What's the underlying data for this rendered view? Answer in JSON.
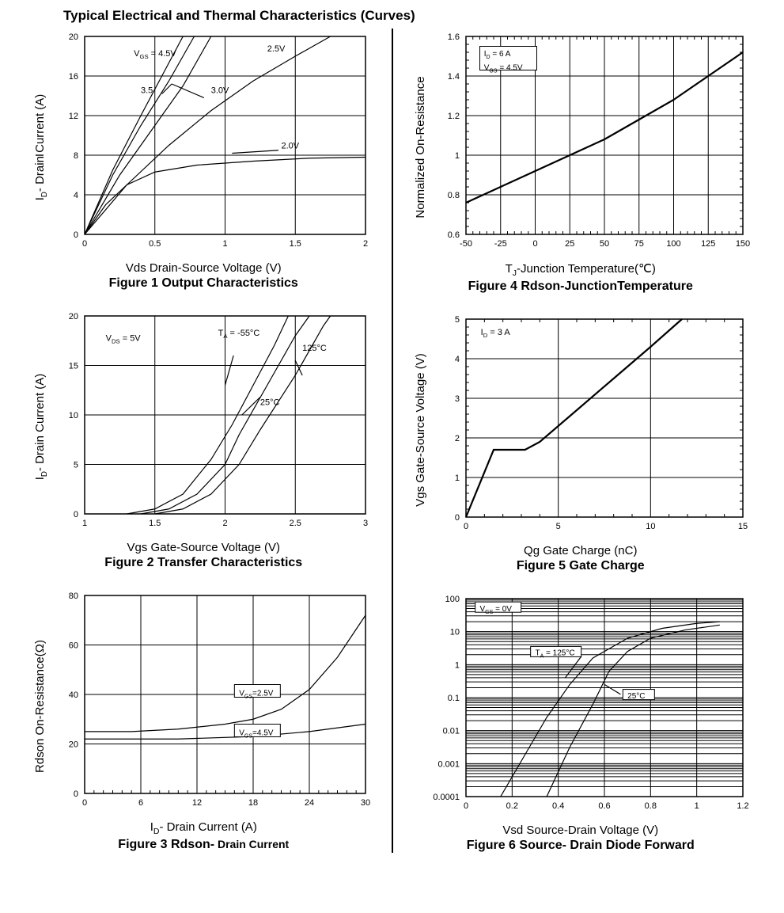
{
  "page_title": "Typical Electrical and Thermal Characteristics (Curves)",
  "background_color": "#ffffff",
  "line_color": "#000000",
  "grid_color": "#000000",
  "fig1": {
    "type": "line",
    "ylabel_html": "I<sub>D</sub>- Drain Current (A)",
    "xlabel": "Vds Drain-Source Voltage (V)",
    "title": "Figure 1 Output Characteristics",
    "xlim": [
      0,
      2
    ],
    "ylim": [
      0,
      20
    ],
    "xticks": [
      0,
      0.5,
      1,
      1.5,
      2
    ],
    "yticks": [
      0,
      4,
      8,
      12,
      16,
      20
    ],
    "annotation_vgs": "V",
    "annotation_vgs2": " = 4.5V",
    "labels": {
      "c45": "",
      "c35": "3.5",
      "c30": "3.0V",
      "c25": "2.5V",
      "c20": "2.0V"
    },
    "series": {
      "4.5V": [
        [
          0,
          0
        ],
        [
          0.2,
          6.5
        ],
        [
          0.4,
          12
        ],
        [
          0.55,
          16
        ],
        [
          0.7,
          20
        ]
      ],
      "3.5": [
        [
          0,
          0
        ],
        [
          0.2,
          6
        ],
        [
          0.4,
          11
        ],
        [
          0.6,
          15.5
        ],
        [
          0.78,
          20
        ]
      ],
      "3.0V": [
        [
          0,
          0
        ],
        [
          0.25,
          6
        ],
        [
          0.5,
          11
        ],
        [
          0.7,
          15
        ],
        [
          0.9,
          20
        ]
      ],
      "2.5V": [
        [
          0,
          0
        ],
        [
          0.3,
          5
        ],
        [
          0.6,
          9
        ],
        [
          0.9,
          12.5
        ],
        [
          1.2,
          15.5
        ],
        [
          1.5,
          18
        ],
        [
          1.75,
          20
        ]
      ],
      "2.0V": [
        [
          0,
          0
        ],
        [
          0.15,
          3
        ],
        [
          0.3,
          5
        ],
        [
          0.5,
          6.3
        ],
        [
          0.8,
          7
        ],
        [
          1.2,
          7.4
        ],
        [
          1.6,
          7.7
        ],
        [
          2.0,
          7.8
        ]
      ]
    }
  },
  "fig2": {
    "type": "line",
    "ylabel_html": "I<sub>D</sub>- Drain Current (A)",
    "xlabel": "Vgs Gate-Source Voltage (V)",
    "title": "Figure 2 Transfer Characteristics",
    "xlim": [
      1,
      3
    ],
    "ylim": [
      0,
      20
    ],
    "xticks": [
      1,
      1.5,
      2,
      2.5,
      3
    ],
    "yticks": [
      0,
      5,
      10,
      15,
      20
    ],
    "annotation_vds": "V",
    "annotation_vds2": " = 5V",
    "labels": {
      "m55": "T",
      "m55b": " = -55°C",
      "p125": "125°C",
      "p25": "25°C"
    },
    "series": {
      "-55": [
        [
          1.3,
          0
        ],
        [
          1.5,
          0.5
        ],
        [
          1.7,
          2
        ],
        [
          1.9,
          5.5
        ],
        [
          2.05,
          9
        ],
        [
          2.2,
          13
        ],
        [
          2.35,
          17
        ],
        [
          2.45,
          20
        ]
      ],
      "25": [
        [
          1.4,
          0
        ],
        [
          1.6,
          0.5
        ],
        [
          1.8,
          2
        ],
        [
          2.0,
          5
        ],
        [
          2.1,
          8
        ],
        [
          2.3,
          13
        ],
        [
          2.5,
          18
        ],
        [
          2.6,
          20
        ]
      ],
      "125": [
        [
          1.5,
          0
        ],
        [
          1.7,
          0.5
        ],
        [
          1.9,
          2
        ],
        [
          2.1,
          5
        ],
        [
          2.25,
          8.5
        ],
        [
          2.5,
          14
        ],
        [
          2.7,
          19
        ],
        [
          2.75,
          20
        ]
      ]
    }
  },
  "fig3": {
    "type": "line",
    "ylabel": "Rdson On-Resistance(Ω)",
    "xlabel_html": "I<sub>D</sub>- Drain Current (A)",
    "title": "Figure 3 Rdson-",
    "title_sub": " Drain Current",
    "xlim": [
      0,
      30
    ],
    "ylim": [
      0,
      80
    ],
    "xticks": [
      0,
      6,
      12,
      18,
      24,
      30
    ],
    "yticks": [
      0,
      20,
      40,
      60,
      80
    ],
    "minor_x": true,
    "labels": {
      "v25": "V",
      "v25b": "=2.5V",
      "v45": "V",
      "v45b": "=4.5V"
    },
    "series": {
      "2.5V": [
        [
          0,
          25
        ],
        [
          5,
          25
        ],
        [
          10,
          26
        ],
        [
          15,
          28
        ],
        [
          18,
          30
        ],
        [
          21,
          34
        ],
        [
          24,
          42
        ],
        [
          27,
          55
        ],
        [
          30,
          72
        ]
      ],
      "4.5V": [
        [
          0,
          22
        ],
        [
          10,
          22
        ],
        [
          18,
          23
        ],
        [
          24,
          25
        ],
        [
          30,
          28
        ]
      ]
    }
  },
  "fig4": {
    "type": "line",
    "ylabel": "Normalized On-Resistance",
    "xlabel_html": "T<sub>J</sub>-Junction Temperature(℃)",
    "title": "Figure 4 Rdson-JunctionTemperature",
    "xlim": [
      -50,
      150
    ],
    "ylim": [
      0.6,
      1.6
    ],
    "xticks": [
      -50,
      -25,
      0,
      25,
      50,
      75,
      100,
      125,
      150
    ],
    "yticks": [
      0.6,
      0.8,
      1,
      1.2,
      1.4,
      1.6
    ],
    "annotation1": "I",
    "annotation1b": " = 6 A",
    "annotation2": "V",
    "annotation2b": " = 4.5V",
    "series": {
      "line": [
        [
          -50,
          0.76
        ],
        [
          -25,
          0.84
        ],
        [
          0,
          0.92
        ],
        [
          25,
          1.0
        ],
        [
          50,
          1.08
        ],
        [
          75,
          1.18
        ],
        [
          100,
          1.28
        ],
        [
          125,
          1.4
        ],
        [
          150,
          1.52
        ]
      ]
    }
  },
  "fig5": {
    "type": "line",
    "ylabel": "Vgs Gate-Source Voltage (V)",
    "xlabel": "Qg Gate Charge (nC)",
    "title": "Figure 5 Gate Charge",
    "xlim": [
      0,
      15
    ],
    "ylim": [
      0,
      5
    ],
    "xticks": [
      0,
      5,
      10,
      15
    ],
    "yticks": [
      0,
      1,
      2,
      3,
      4,
      5
    ],
    "annotation": "I",
    "annotation_b": " = 3 A",
    "series": {
      "line": [
        [
          0,
          0
        ],
        [
          1.5,
          1.7
        ],
        [
          3.2,
          1.7
        ],
        [
          4,
          1.9
        ],
        [
          6,
          2.7
        ],
        [
          8,
          3.5
        ],
        [
          10,
          4.3
        ],
        [
          11.7,
          5.0
        ]
      ]
    }
  },
  "fig6": {
    "type": "semilogy",
    "ylabel": "",
    "xlabel": "Vsd Source-Drain Voltage (V)",
    "title": "Figure 6 Source- Drain Diode Forward",
    "xlim": [
      0,
      1.2
    ],
    "ylim": [
      0.0001,
      100
    ],
    "xticks": [
      0,
      0.2,
      0.4,
      0.6,
      0.8,
      1,
      1.2
    ],
    "ylog_ticks": [
      "0.0001",
      "0.001",
      "0.01",
      "0.1",
      "1",
      "10",
      "100"
    ],
    "annotation_vgs": "V",
    "annotation_vgs_b": " = 0V",
    "ann125": "T",
    "ann125b": " = 125°C",
    "ann25": "25°C",
    "series": {
      "125": [
        [
          0.15,
          -4
        ],
        [
          0.25,
          -2.8
        ],
        [
          0.35,
          -1.6
        ],
        [
          0.45,
          -0.6
        ],
        [
          0.55,
          0.2
        ],
        [
          0.7,
          0.8
        ],
        [
          0.85,
          1.1
        ],
        [
          1.0,
          1.25
        ],
        [
          1.1,
          1.3
        ]
      ],
      "25": [
        [
          0.35,
          -4
        ],
        [
          0.45,
          -2.5
        ],
        [
          0.55,
          -1.2
        ],
        [
          0.62,
          -0.2
        ],
        [
          0.7,
          0.4
        ],
        [
          0.8,
          0.8
        ],
        [
          0.95,
          1.05
        ],
        [
          1.1,
          1.2
        ]
      ]
    }
  }
}
